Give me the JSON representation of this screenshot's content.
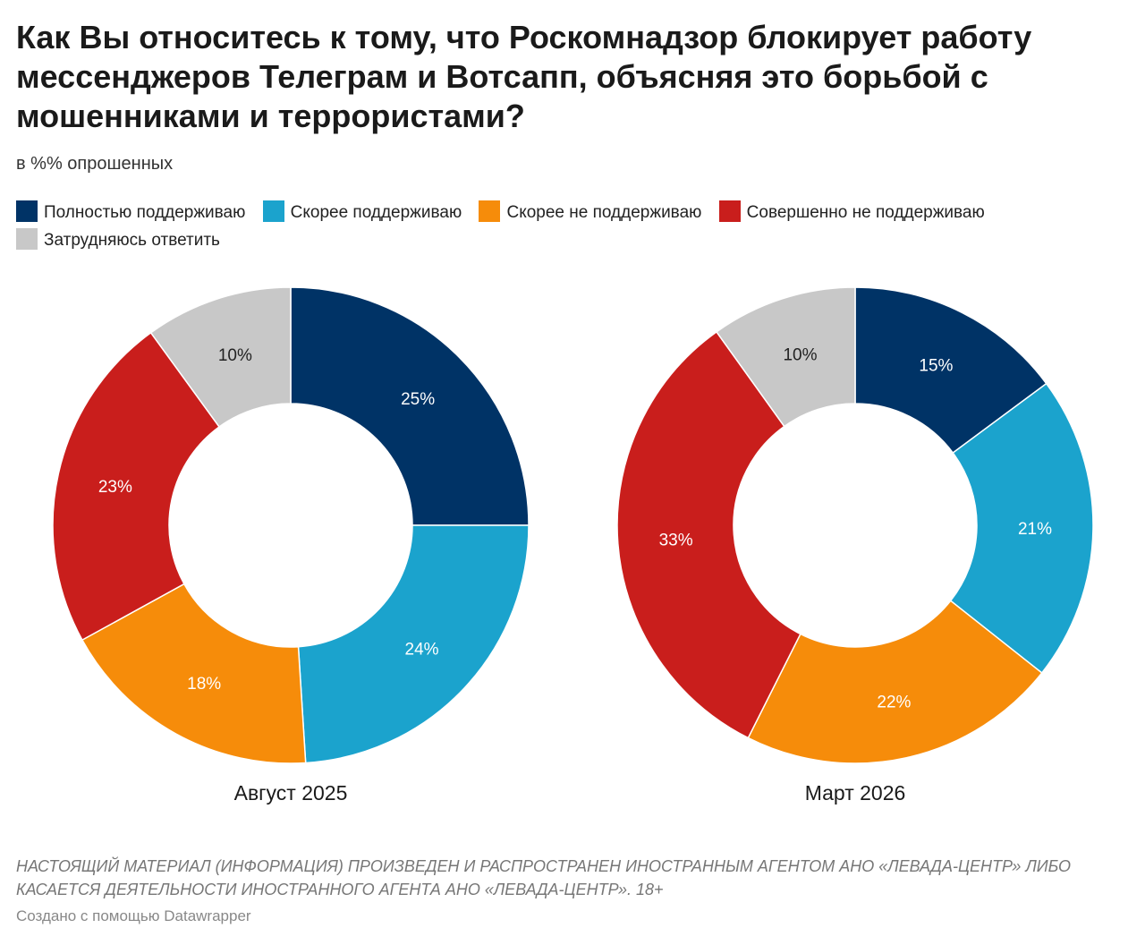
{
  "title": "Как Вы относитесь к тому, что Роскомнадзор блокирует работу мессенджеров Телеграм и Вотсапп, объясняя это борьбой с мошенниками и террористами?",
  "subtitle": "в %% опрошенных",
  "legend": [
    {
      "label": "Полностью поддерживаю",
      "color": "#003366"
    },
    {
      "label": "Скорее поддерживаю",
      "color": "#1ba3cd"
    },
    {
      "label": "Скорее не поддерживаю",
      "color": "#f68c0a"
    },
    {
      "label": "Совершенно не поддерживаю",
      "color": "#c91e1c"
    },
    {
      "label": "Затрудняюсь ответить",
      "color": "#c8c8c8"
    }
  ],
  "chart_data": [
    {
      "type": "pie",
      "variant": "donut",
      "title": "Август 2025",
      "categories": [
        "Полностью поддерживаю",
        "Скорее поддерживаю",
        "Скорее не поддерживаю",
        "Совершенно не поддерживаю",
        "Затрудняюсь ответить"
      ],
      "values": [
        25,
        24,
        18,
        23,
        10
      ],
      "labels": [
        "25%",
        "24%",
        "18%",
        "23%",
        "10%"
      ],
      "colors": [
        "#003366",
        "#1ba3cd",
        "#f68c0a",
        "#c91e1c",
        "#c8c8c8"
      ]
    },
    {
      "type": "pie",
      "variant": "donut",
      "title": "Март 2026",
      "categories": [
        "Полностью поддерживаю",
        "Скорее поддерживаю",
        "Скорее не поддерживаю",
        "Совершенно не поддерживаю",
        "Затрудняюсь ответить"
      ],
      "values": [
        15,
        21,
        22,
        33,
        10
      ],
      "labels": [
        "15%",
        "21%",
        "22%",
        "33%",
        "10%"
      ],
      "colors": [
        "#003366",
        "#1ba3cd",
        "#f68c0a",
        "#c91e1c",
        "#c8c8c8"
      ]
    }
  ],
  "notice": "НАСТОЯЩИЙ МАТЕРИАЛ (ИНФОРМАЦИЯ) ПРОИЗВЕДЕН И РАСПРОСТРАНЕН ИНОСТРАННЫМ АГЕНТОМ АНО «ЛЕВАДА-ЦЕНТР» ЛИБО КАСАЕТСЯ ДЕЯТЕЛЬНОСТИ ИНОСТРАННОГО АГЕНТА АНО «ЛЕВАДА-ЦЕНТР». 18+",
  "credit": "Создано с помощью Datawrapper"
}
